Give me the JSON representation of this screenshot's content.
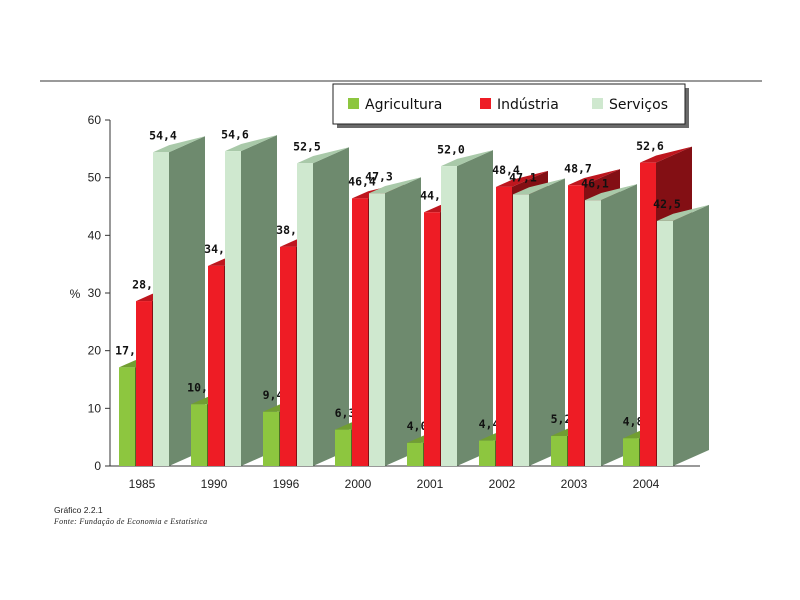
{
  "caption": {
    "figure": "Gráfico 2.2.1",
    "source": "Fonte: Fundação de Economia e Estatística"
  },
  "chart_data": {
    "type": "bar",
    "title": "",
    "xlabel": "",
    "ylabel": "%",
    "ylim": [
      0,
      60
    ],
    "yticks": [
      0,
      10,
      20,
      30,
      40,
      50,
      60
    ],
    "categories": [
      "1985",
      "1990",
      "1996",
      "2000",
      "2001",
      "2002",
      "2003",
      "2004"
    ],
    "series": [
      {
        "name": "Agricultura",
        "color": "#8dc63f",
        "values": [
          17.1,
          10.7,
          9.4,
          6.3,
          4.0,
          4.4,
          5.2,
          4.8
        ],
        "labels": [
          "17,1",
          "10,7",
          "9,4",
          "6,3",
          "4,0",
          "4,4",
          "5,2",
          "4,8"
        ]
      },
      {
        "name": "Indústria",
        "color": "#ee1c25",
        "values": [
          28.6,
          34.7,
          38.0,
          46.4,
          44.0,
          48.4,
          48.7,
          52.6
        ],
        "labels": [
          "28,6",
          "34,7",
          "38,0",
          "46,4",
          "44,0",
          "48,4",
          "48,7",
          "52,6"
        ]
      },
      {
        "name": "Serviços",
        "color": "#cfe8cf",
        "values": [
          54.4,
          54.6,
          52.5,
          47.3,
          52.0,
          47.1,
          46.1,
          42.5
        ],
        "labels": [
          "54,4",
          "54,6",
          "52,5",
          "47,3",
          "52,0",
          "47,1",
          "46,1",
          "42,5"
        ]
      }
    ],
    "legend_position": "top-right",
    "grid": false,
    "style": "3d-bar"
  }
}
